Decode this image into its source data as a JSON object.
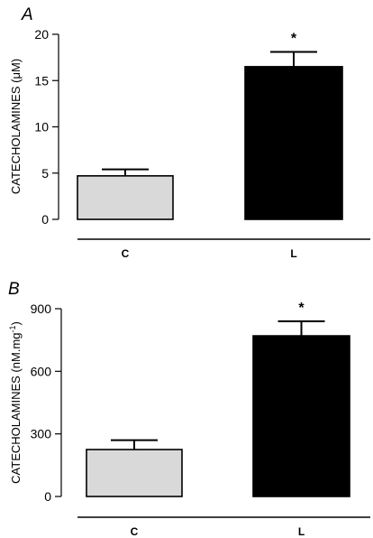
{
  "figure": {
    "panel_a_letter": "A",
    "panel_b_letter": "B"
  },
  "chart_data": [
    {
      "type": "bar",
      "panel": "A",
      "categories": [
        "C",
        "L"
      ],
      "values": [
        4.7,
        16.5
      ],
      "error_upper": [
        5.4,
        18.1
      ],
      "colors": [
        "#d9d9d9",
        "#000000"
      ],
      "significance": [
        "",
        "*"
      ],
      "ylabel_main": "CATECHOLAMINES (",
      "ylabel_unit": "μM",
      "ylabel_end": ")",
      "ylim": [
        0,
        20
      ],
      "yticks": [
        0,
        5,
        10,
        15,
        20
      ],
      "grid": false,
      "legend": "none"
    },
    {
      "type": "bar",
      "panel": "B",
      "categories": [
        "C",
        "L"
      ],
      "values": [
        225,
        770
      ],
      "error_upper": [
        270,
        840
      ],
      "colors": [
        "#d9d9d9",
        "#000000"
      ],
      "significance": [
        "",
        "*"
      ],
      "ylabel_main": "CATECHOLAMINES (nM.mg",
      "ylabel_sup": "-1",
      "ylabel_end": ")",
      "ylim": [
        0,
        900
      ],
      "yticks": [
        0,
        300,
        600,
        900
      ],
      "grid": false,
      "legend": "none"
    }
  ]
}
